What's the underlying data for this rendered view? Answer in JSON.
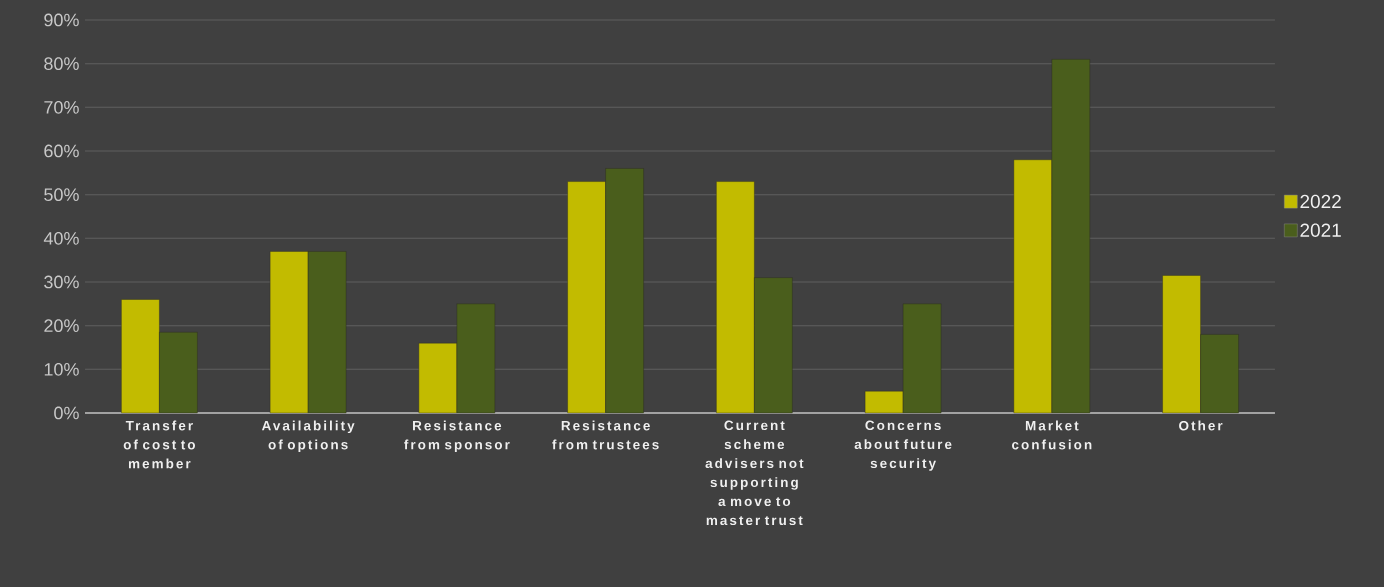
{
  "chart_data": {
    "type": "bar",
    "categories": [
      "Transfer of cost to member",
      "Availability of options",
      "Resistance from sponsor",
      "Resistance from trustees",
      "Current scheme advisers not supporting a move to master trust",
      "Concerns about future security",
      "Market confusion",
      "Other"
    ],
    "series": [
      {
        "name": "2022",
        "color": "#c2bb00",
        "values": [
          26,
          37,
          16,
          53,
          53,
          5,
          58,
          31.5
        ]
      },
      {
        "name": "2021",
        "color": "#4a5e1c",
        "values": [
          18.5,
          37,
          25,
          56,
          31,
          25,
          81,
          18
        ]
      }
    ],
    "ylim": [
      0,
      90
    ],
    "yticks": [
      {
        "value": 0,
        "label": "0%"
      },
      {
        "value": 10,
        "label": "10%"
      },
      {
        "value": 20,
        "label": "20%"
      },
      {
        "value": 30,
        "label": "30%"
      },
      {
        "value": 40,
        "label": "40%"
      },
      {
        "value": 50,
        "label": "50%"
      },
      {
        "value": 60,
        "label": "60%"
      },
      {
        "value": 70,
        "label": "70%"
      },
      {
        "value": 80,
        "label": "80%"
      },
      {
        "value": 90,
        "label": "90%"
      }
    ],
    "grid": "y",
    "legend": "right"
  }
}
